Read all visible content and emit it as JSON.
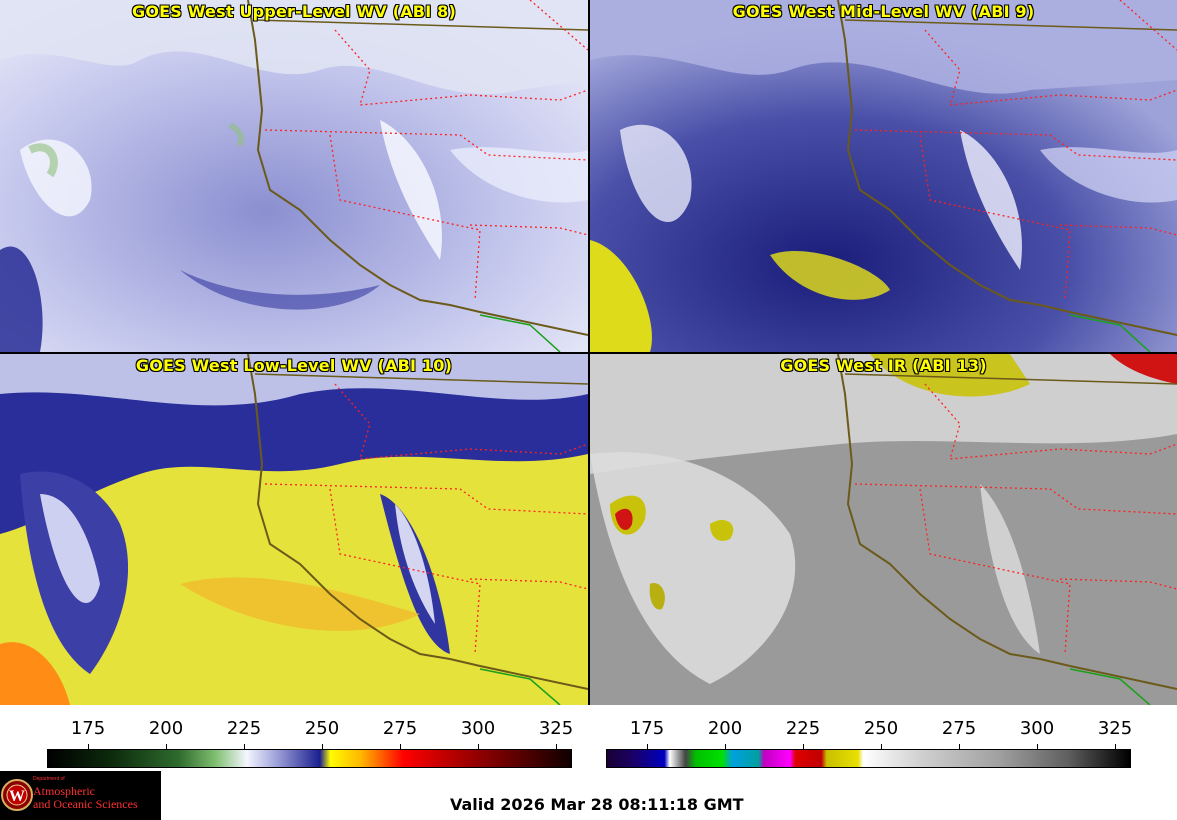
{
  "panels": [
    {
      "title": "GOES West Upper-Level WV (ABI 8)",
      "bg": "#b9bde6",
      "accent": "#3a3f9e",
      "cloud": "#f2f4ff"
    },
    {
      "title": "GOES West Mid-Level WV (ABI 9)",
      "bg": "#5b60b6",
      "accent": "#1c1f84",
      "cloud": "#eef0ff"
    },
    {
      "title": "GOES West Low-Level WV (ABI 10)",
      "bg": "#e8e44a",
      "accent": "#2b2f9a",
      "cloud": "#f5f5ff"
    },
    {
      "title": "GOES West IR (ABI 13)",
      "bg": "#9c9c9c",
      "accent": "#6a6a6a",
      "cloud": "#e4e4e4"
    }
  ],
  "colorbars": [
    {
      "ticks": [
        "175",
        "200",
        "225",
        "250",
        "275",
        "300",
        "325"
      ]
    },
    {
      "ticks": [
        "175",
        "200",
        "225",
        "250",
        "275",
        "300",
        "325"
      ]
    }
  ],
  "logo": {
    "dept": "Department of",
    "line1": "Atmospheric",
    "line2": "and Oceanic Sciences",
    "seal_letter": "W"
  },
  "valid_time": "Valid 2026 Mar 28 08:11:18 GMT",
  "colors": {
    "coast": "#6b5a1a",
    "state_border": "#ff2020",
    "mexico_border": "#1aa01a"
  }
}
